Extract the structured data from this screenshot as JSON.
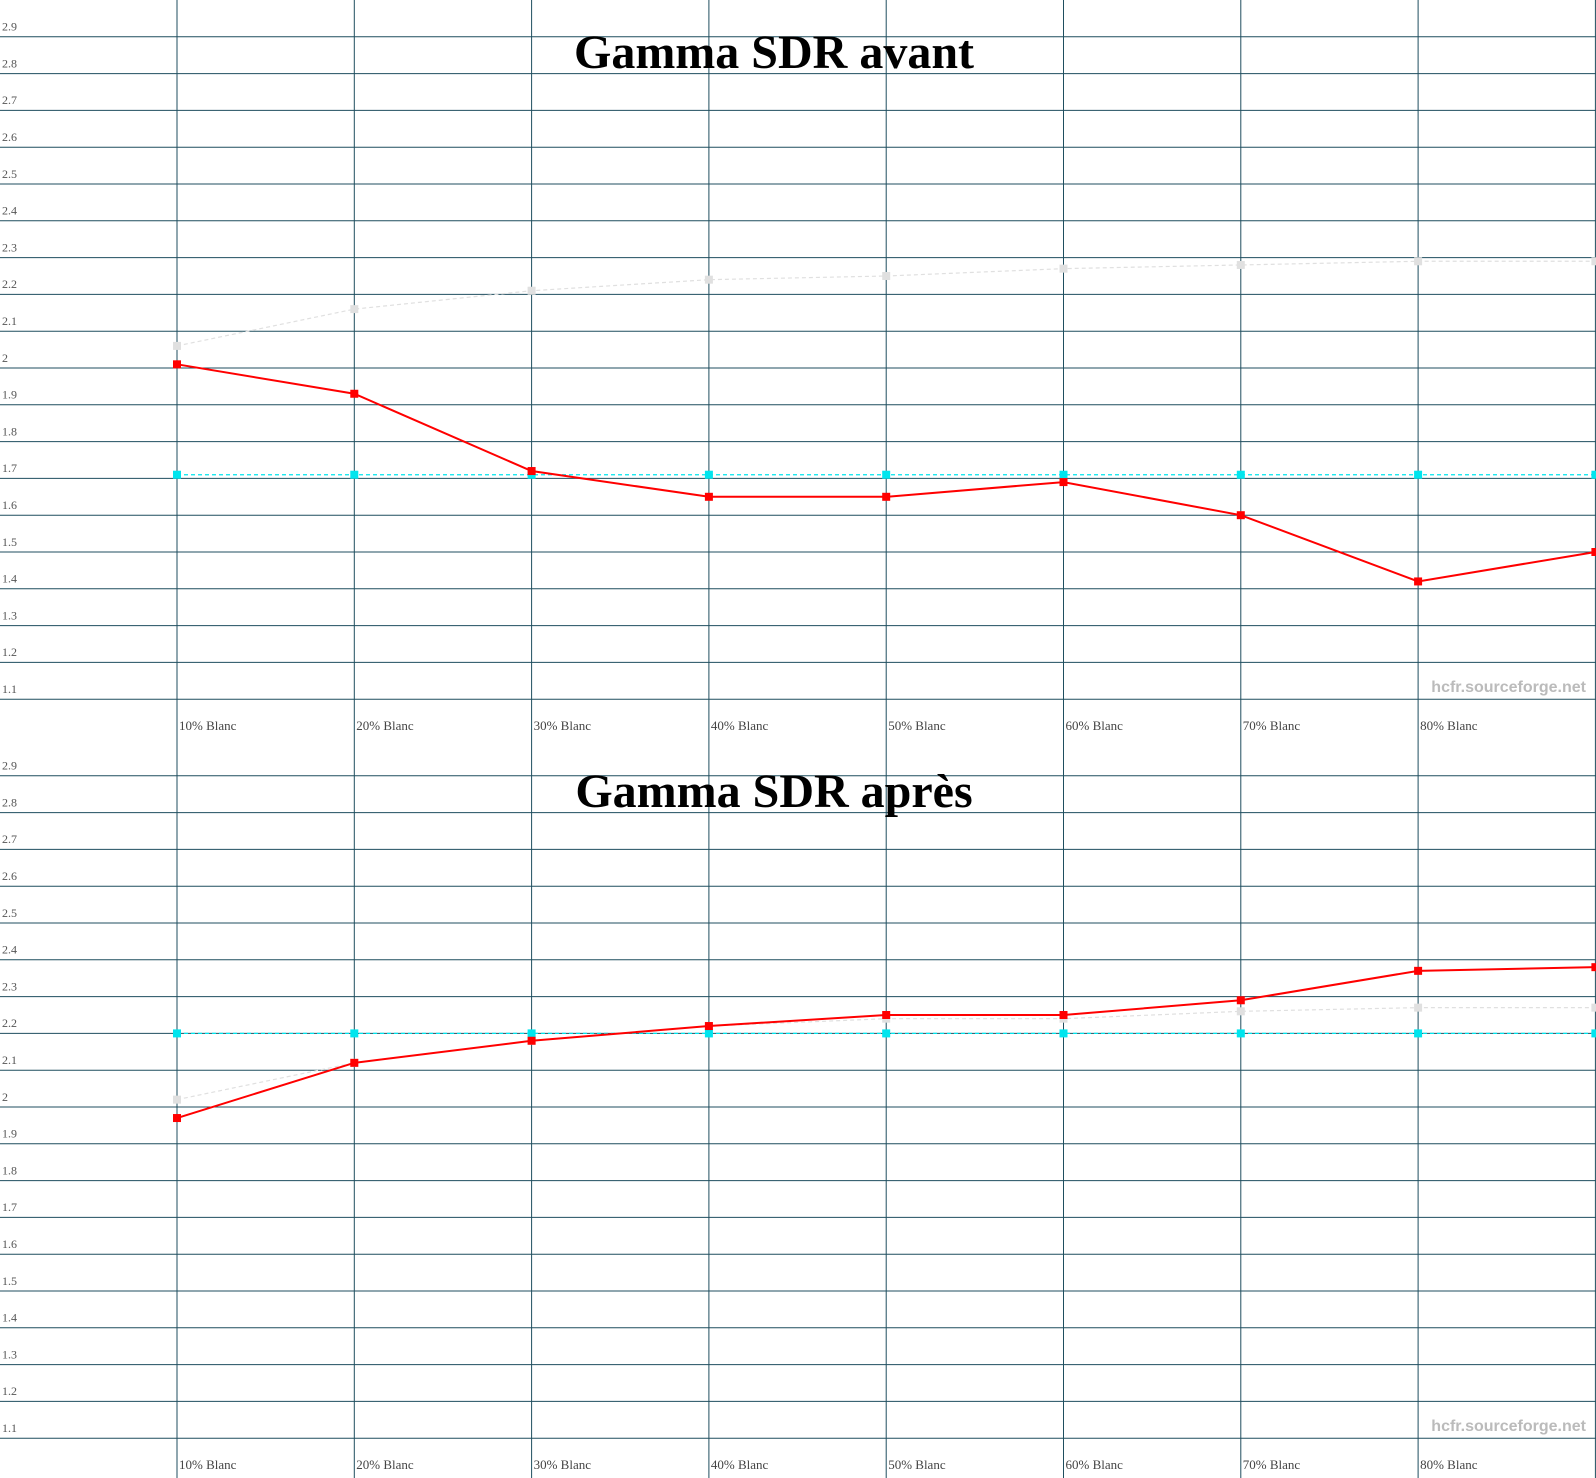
{
  "chart_data": [
    {
      "type": "line",
      "title": "Gamma SDR avant",
      "watermark": "hcfr.sourceforge.net",
      "categories": [
        "10% Blanc",
        "20% Blanc",
        "30% Blanc",
        "40% Blanc",
        "50% Blanc",
        "60% Blanc",
        "70% Blanc",
        "80% Blanc",
        null
      ],
      "series": [
        {
          "color": "#e0e0e0",
          "dashed": true,
          "values": [
            2.06,
            2.16,
            2.21,
            2.24,
            2.25,
            2.27,
            2.28,
            2.29,
            2.29
          ]
        },
        {
          "color": "#00e5ee",
          "dashed": true,
          "values": [
            1.71,
            1.71,
            1.71,
            1.71,
            1.71,
            1.71,
            1.71,
            1.71,
            1.71
          ]
        },
        {
          "color": "#ff0000",
          "dashed": false,
          "values": [
            2.01,
            1.93,
            1.72,
            1.65,
            1.65,
            1.69,
            1.6,
            1.42,
            1.5
          ]
        }
      ],
      "ylim": [
        1.0,
        3.0
      ],
      "yticks": [
        1.1,
        1.2,
        1.3,
        1.4,
        1.5,
        1.6,
        1.7,
        1.8,
        1.9,
        2,
        2.1,
        2.2,
        2.3,
        2.4,
        2.5,
        2.6,
        2.7,
        2.8,
        2.9
      ],
      "grid": true
    },
    {
      "type": "line",
      "title": "Gamma SDR après",
      "watermark": "hcfr.sourceforge.net",
      "categories": [
        "10% Blanc",
        "20% Blanc",
        "30% Blanc",
        "40% Blanc",
        "50% Blanc",
        "60% Blanc",
        "70% Blanc",
        "80% Blanc",
        null
      ],
      "series": [
        {
          "color": "#e0e0e0",
          "dashed": true,
          "values": [
            2.02,
            2.12,
            2.18,
            2.22,
            2.24,
            2.24,
            2.26,
            2.27,
            2.27
          ]
        },
        {
          "color": "#00e5ee",
          "dashed": true,
          "values": [
            2.2,
            2.2,
            2.2,
            2.2,
            2.2,
            2.2,
            2.2,
            2.2,
            2.2
          ]
        },
        {
          "color": "#ff0000",
          "dashed": false,
          "values": [
            1.97,
            2.12,
            2.18,
            2.22,
            2.25,
            2.25,
            2.29,
            2.37,
            2.38
          ]
        }
      ],
      "ylim": [
        1.0,
        3.0
      ],
      "yticks": [
        1.1,
        1.2,
        1.3,
        1.4,
        1.5,
        1.6,
        1.7,
        1.8,
        1.9,
        2,
        2.1,
        2.2,
        2.3,
        2.4,
        2.5,
        2.6,
        2.7,
        2.8,
        2.9
      ],
      "grid": true
    }
  ]
}
